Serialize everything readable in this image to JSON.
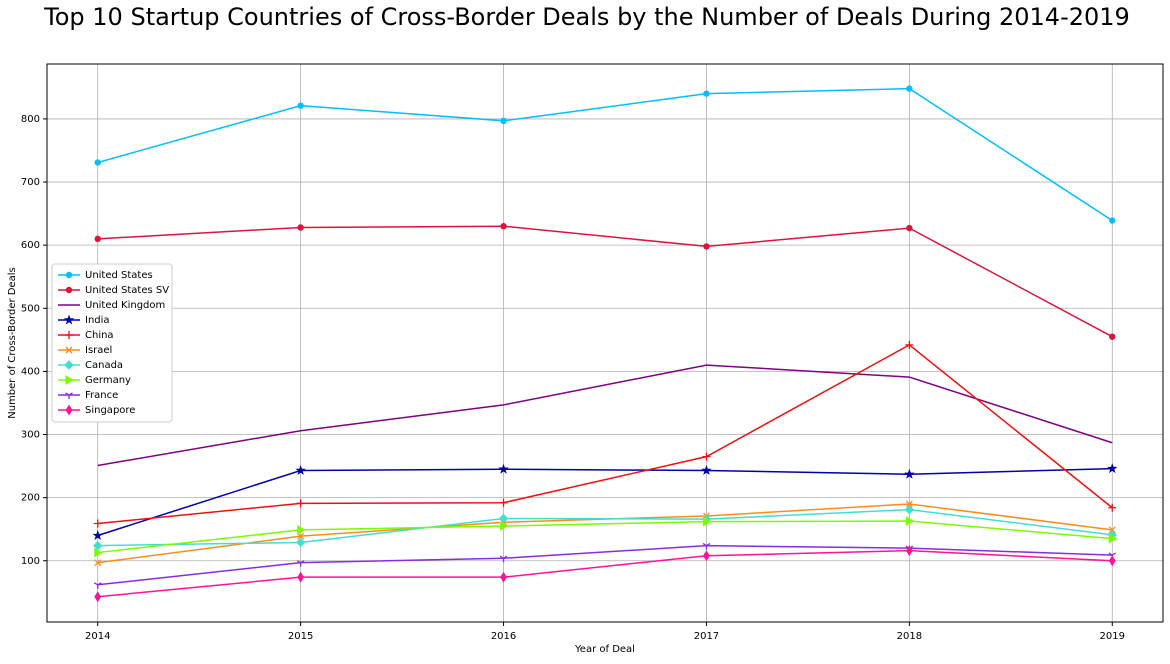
{
  "chart_data": {
    "type": "line",
    "title": "Top 10 Startup Countries of Cross-Border Deals by the Number of Deals During 2014-2019",
    "x_label": "Year of Deal",
    "y_label": "Number of Cross-Border Deals",
    "x": [
      2014,
      2015,
      2016,
      2017,
      2018,
      2019
    ],
    "xlim": [
      2013.75,
      2019.25
    ],
    "xticks": [
      2014,
      2015,
      2016,
      2017,
      2018,
      2019
    ],
    "ylim": [
      3,
      887
    ],
    "yticks": [
      100,
      200,
      300,
      400,
      500,
      600,
      700,
      800
    ],
    "grid": true,
    "legend": "center left",
    "series": [
      {
        "name": "United States",
        "color": "#00bfff",
        "marker": "o",
        "values": [
          731,
          821,
          797,
          840,
          848,
          639
        ]
      },
      {
        "name": "United States SV",
        "color": "#dc143c",
        "marker": "o",
        "values": [
          610,
          628,
          630,
          598,
          627,
          455
        ]
      },
      {
        "name": "United Kingdom",
        "color": "#800080",
        "marker": "none",
        "values": [
          251,
          306,
          347,
          410,
          391,
          287
        ]
      },
      {
        "name": "India",
        "color": "#0000aa",
        "marker": "*",
        "values": [
          140,
          243,
          245,
          243,
          237,
          246
        ]
      },
      {
        "name": "China",
        "color": "#f01010",
        "marker": "+",
        "values": [
          159,
          191,
          192,
          265,
          442,
          184
        ]
      },
      {
        "name": "Israel",
        "color": "#ff8c1a",
        "marker": "x",
        "values": [
          97,
          139,
          161,
          171,
          190,
          149
        ]
      },
      {
        "name": "Canada",
        "color": "#40e0d0",
        "marker": "D",
        "values": [
          124,
          129,
          167,
          166,
          181,
          141
        ]
      },
      {
        "name": "Germany",
        "color": "#7cfc00",
        "marker": ">",
        "values": [
          113,
          149,
          155,
          162,
          163,
          135
        ]
      },
      {
        "name": "France",
        "color": "#8a2be2",
        "marker": "1",
        "values": [
          62,
          97,
          104,
          124,
          120,
          109
        ]
      },
      {
        "name": "Singapore",
        "color": "#ff1493",
        "marker": "d",
        "values": [
          43,
          74,
          74,
          108,
          116,
          100
        ]
      }
    ]
  }
}
